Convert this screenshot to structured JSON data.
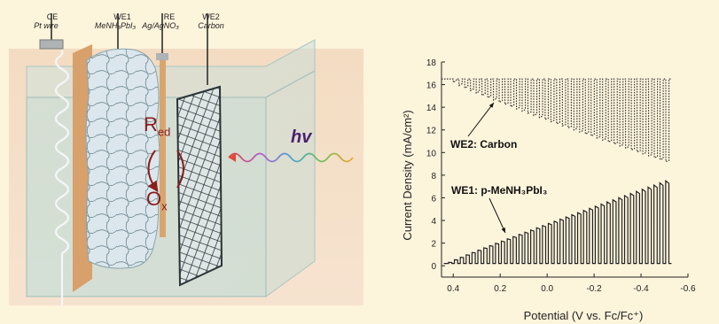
{
  "scene": {
    "electrodes": [
      {
        "code": "CE",
        "material": "Pt wire"
      },
      {
        "code": "WE1",
        "material": "MeNH₃PbI₃"
      },
      {
        "code": "RE",
        "material": "Ag/AgNO₃"
      },
      {
        "code": "WE2",
        "material": "Carbon"
      }
    ],
    "redox_top_main": "R",
    "redox_top_sub": "ed",
    "redox_bottom_main": "O",
    "redox_bottom_sub": "x",
    "light_label": "hv",
    "colors": {
      "redox": "#8b1c1c",
      "light": "#7a3db8"
    }
  },
  "chart_data": {
    "type": "line",
    "xlabel": "Potential (V vs. Fc/Fc⁺)",
    "ylabel": "Current Density (mA/cm²)",
    "xlim": [
      0.45,
      -0.6
    ],
    "ylim": [
      -1,
      18
    ],
    "xticks": [
      0.4,
      0.2,
      0.0,
      -0.2,
      -0.4,
      -0.6
    ],
    "xtick_labels": [
      "0.4",
      "0.2",
      "0.0",
      "-0.2",
      "-0.4",
      "-0.6"
    ],
    "yticks": [
      0,
      2,
      4,
      6,
      8,
      10,
      12,
      14,
      16,
      18
    ],
    "series": [
      {
        "name": "WE2: Carbon",
        "style": "dotted",
        "baseline": 16.5,
        "x_range": [
          0.45,
          -0.53
        ],
        "pulses": 38,
        "min_start": 16.2,
        "min_end": 9.2,
        "pulse_onset": 0.4
      },
      {
        "name": "WE1: p-MeNH₃PbI₃",
        "style": "solid",
        "baseline": 0.2,
        "x_range": [
          0.44,
          -0.53
        ],
        "pulses": 38,
        "max_start": 0.3,
        "max_end": 7.5,
        "pulse_onset": 0.42
      }
    ],
    "annotations": [
      "WE2: Carbon",
      "WE1: p-MeNH₃PbI₃"
    ]
  }
}
